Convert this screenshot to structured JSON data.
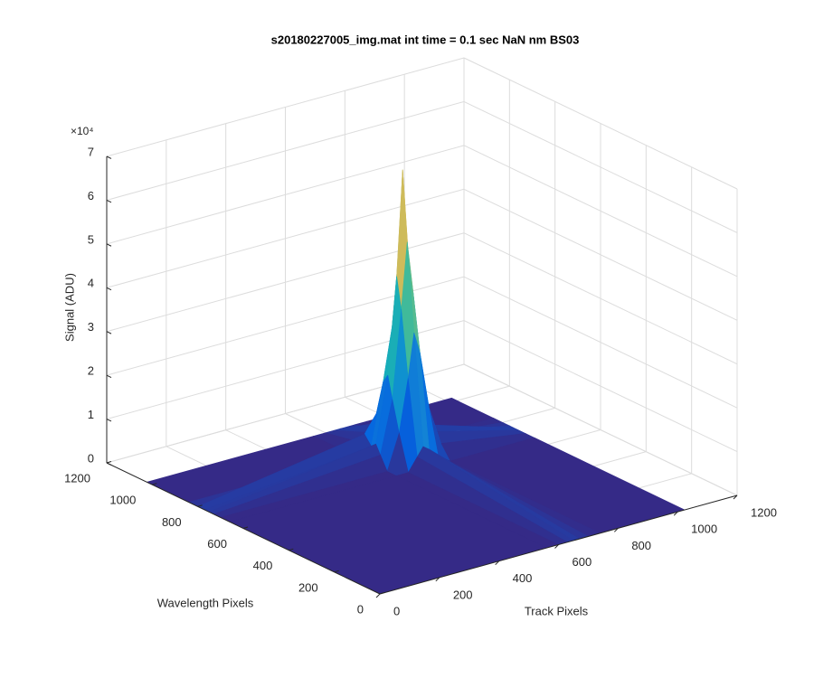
{
  "chart_data": {
    "type": "surface",
    "title": "s20180227005_img.mat int time = 0.1 sec  NaN nm BS03",
    "xlabel": "Track Pixels",
    "ylabel": "Wavelength Pixels",
    "zlabel": "Signal (ADU)",
    "z_multiplier": "×10⁴",
    "xlim": [
      0,
      1200
    ],
    "ylim": [
      0,
      1200
    ],
    "zlim": [
      0,
      70000
    ],
    "xticks": [
      0,
      200,
      400,
      600,
      800,
      1000,
      1200
    ],
    "yticks": [
      0,
      200,
      400,
      600,
      800,
      1000,
      1200
    ],
    "zticks": [
      {
        "value": 0,
        "label": "0"
      },
      {
        "value": 10000,
        "label": "1"
      },
      {
        "value": 20000,
        "label": "2"
      },
      {
        "value": 30000,
        "label": "3"
      },
      {
        "value": 40000,
        "label": "4"
      },
      {
        "value": 50000,
        "label": "5"
      },
      {
        "value": 60000,
        "label": "6"
      },
      {
        "value": 70000,
        "label": "7"
      }
    ],
    "grid": true,
    "colormap": [
      "#352a87",
      "#0363e1",
      "#1485d4",
      "#06a7c6",
      "#38b99e",
      "#92bf73",
      "#d9ba56",
      "#fcce2e",
      "#f9fb0e"
    ],
    "x": [
      1,
      560,
      600,
      630,
      650,
      670,
      700,
      740,
      1024
    ],
    "y": [
      1,
      660,
      700,
      730,
      750,
      770,
      800,
      840,
      1024
    ],
    "z": [
      [
        0,
        0,
        0,
        0,
        0,
        0,
        0,
        0,
        0
      ],
      [
        0,
        0,
        0,
        3000,
        5000,
        4000,
        2000,
        0,
        0
      ],
      [
        0,
        0,
        8000,
        20000,
        30000,
        25000,
        12000,
        3000,
        0
      ],
      [
        0,
        3000,
        15000,
        35000,
        50000,
        38000,
        18000,
        5000,
        0
      ],
      [
        0,
        5000,
        20000,
        42000,
        66000,
        45000,
        22000,
        6000,
        0
      ],
      [
        0,
        4000,
        18000,
        30000,
        45000,
        32000,
        15000,
        4000,
        0
      ],
      [
        0,
        6000,
        10000,
        15000,
        20000,
        14000,
        8000,
        2000,
        0
      ],
      [
        0,
        0,
        2000,
        4000,
        6000,
        4000,
        2000,
        0,
        0
      ],
      [
        0,
        0,
        0,
        0,
        0,
        0,
        0,
        0,
        0
      ]
    ]
  }
}
